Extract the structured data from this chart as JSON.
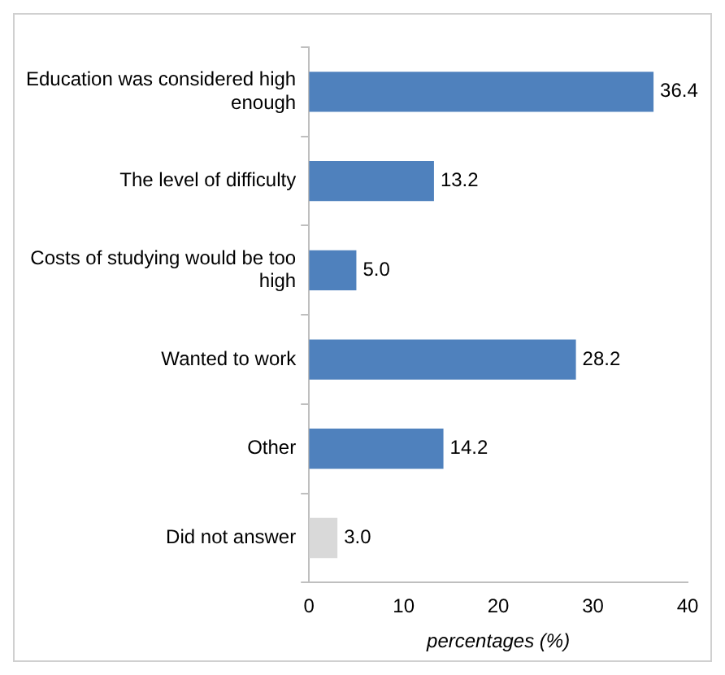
{
  "chart_data": {
    "type": "bar",
    "orientation": "horizontal",
    "xlabel": "percentages (%)",
    "categories": [
      "Education was considered high enough",
      "The level of difficulty",
      "Costs of studying would be too high",
      "Wanted to work",
      "Other",
      "Did not answer"
    ],
    "values": [
      36.4,
      13.2,
      5.0,
      28.2,
      14.2,
      3.0
    ],
    "colors": [
      "#4f81bd",
      "#4f81bd",
      "#4f81bd",
      "#4f81bd",
      "#4f81bd",
      "#d9d9d9"
    ],
    "value_labels": [
      "36.4",
      "13.2",
      "5.0",
      "28.2",
      "14.2",
      "3.0"
    ],
    "xlim": [
      0,
      40
    ],
    "xticks": [
      0,
      10,
      20,
      30,
      40
    ],
    "grid": false,
    "legend": false
  }
}
